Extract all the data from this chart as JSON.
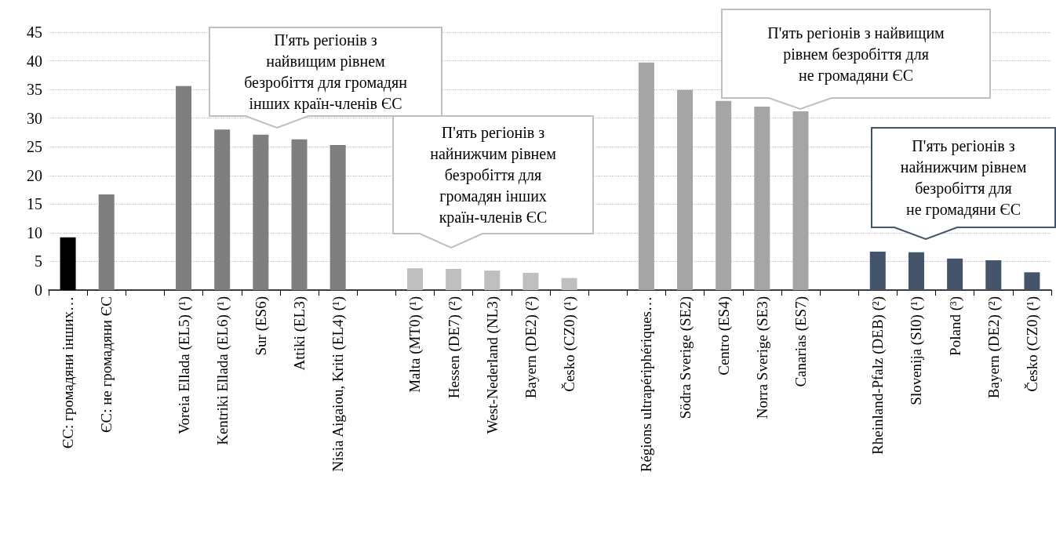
{
  "chart_data": {
    "type": "bar",
    "categories": [
      "ЄС: громадяни інших…",
      "ЄС: не громадяни ЄС",
      null,
      "Voreia Ellada (EL5) (¹)",
      "Kentriki Ellada (EL6) (¹)",
      "Sur (ES6)",
      "Attiki (EL3)",
      "Nisia Aigaiou, Kriti (EL4) (¹)",
      null,
      "Malta (MT0) (¹)",
      "Hessen (DE7) (²)",
      "West-Nederland (NL3)",
      "Bayern (DE2) (²)",
      "Česko (CZ0) (¹)",
      null,
      "Régions ultrapériphériques…",
      "Södra Sverige (SE2)",
      "Centro (ES4)",
      "Norra Sverige (SE3)",
      "Canarias (ES7)",
      null,
      "Rheinland-Pfalz (DEB) (²)",
      "Slovenija (SI0) (¹)",
      "Poland (³)",
      "Bayern (DE2) (²)",
      "Česko (CZ0) (¹)"
    ],
    "values": [
      9.2,
      16.7,
      null,
      35.6,
      28.0,
      27.1,
      26.3,
      25.3,
      null,
      3.8,
      3.7,
      3.4,
      3.0,
      2.1,
      null,
      39.7,
      34.9,
      33.0,
      32.0,
      31.2,
      null,
      6.7,
      6.6,
      5.5,
      5.2,
      3.1
    ],
    "colors": [
      "#000000",
      "#7f7f7f",
      null,
      "#7f7f7f",
      "#7f7f7f",
      "#7f7f7f",
      "#7f7f7f",
      "#7f7f7f",
      null,
      "#bfbfbf",
      "#bfbfbf",
      "#bfbfbf",
      "#bfbfbf",
      "#bfbfbf",
      null,
      "#a5a5a5",
      "#a5a5a5",
      "#a5a5a5",
      "#a5a5a5",
      "#a5a5a5",
      null,
      "#44546a",
      "#44546a",
      "#44546a",
      "#44546a",
      "#44546a"
    ],
    "ylim": [
      0,
      45
    ],
    "yticks": [
      0,
      5,
      10,
      15,
      20,
      25,
      30,
      35,
      40,
      45
    ],
    "grid": "y",
    "annotations": [
      {
        "text": "П'ять регіонів з\nнайвищим рівнем\nбезробіття для громадян\nінших країн-членів ЄС"
      },
      {
        "text": "П'ять регіонів з\nнайнижчим рівнем\nбезробіття для\nгромадян інших\nкраїн-членів ЄС"
      },
      {
        "text": "П'ять регіонів з найвищим\nрівнем безробіття для\nне громадяни ЄС"
      },
      {
        "text": "П'ять регіонів з\nнайнижчим рівнем\nбезробіття для\nне громадяни ЄС"
      }
    ]
  }
}
